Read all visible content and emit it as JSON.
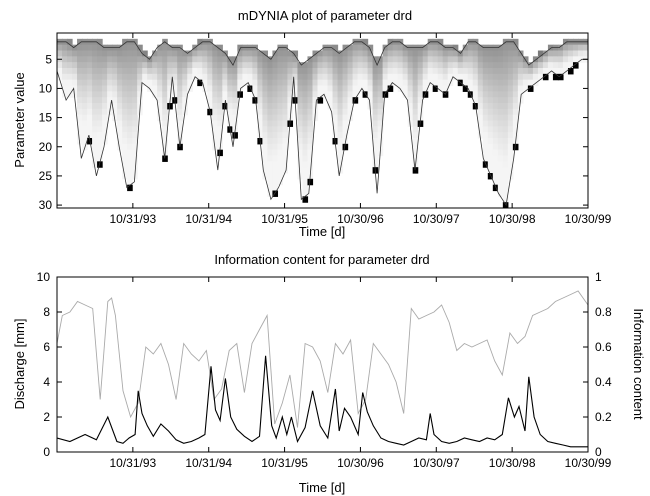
{
  "chart_data": [
    {
      "type": "heatmap",
      "title": "mDYNIA plot of parameter drd",
      "xlabel": "Time [d]",
      "ylabel": "Parameter value",
      "x_ticks": [
        "10/31/93",
        "10/31/94",
        "10/31/95",
        "10/30/96",
        "10/30/97",
        "10/30/98",
        "10/30/99"
      ],
      "x_tick_positions": [
        1993.83,
        1994.83,
        1995.83,
        1996.83,
        1997.83,
        1998.83,
        1999.83
      ],
      "xlim": [
        1992.83,
        1999.83
      ],
      "y_ticks": [
        5,
        10,
        15,
        20,
        25,
        30
      ],
      "ylim": [
        0.5,
        30.5
      ],
      "y_reversed": true,
      "series": [
        {
          "role": "upper",
          "x": [
            1992.83,
            1992.95,
            1993.05,
            1993.15,
            1993.25,
            1993.35,
            1993.45,
            1993.55,
            1993.65,
            1993.75,
            1993.85,
            1993.95,
            1994.05,
            1994.15,
            1994.25,
            1994.35,
            1994.45,
            1994.55,
            1994.65,
            1994.75,
            1994.85,
            1994.95,
            1995.05,
            1995.15,
            1995.25,
            1995.35,
            1995.45,
            1995.55,
            1995.65,
            1995.75,
            1995.85,
            1995.95,
            1996.05,
            1996.15,
            1996.25,
            1996.35,
            1996.45,
            1996.55,
            1996.65,
            1996.75,
            1996.85,
            1996.95,
            1997.05,
            1997.15,
            1997.25,
            1997.35,
            1997.45,
            1997.55,
            1997.65,
            1997.75,
            1997.85,
            1997.95,
            1998.05,
            1998.15,
            1998.25,
            1998.35,
            1998.45,
            1998.55,
            1998.65,
            1998.75,
            1998.85,
            1998.95,
            1999.05,
            1999.15,
            1999.25,
            1999.35,
            1999.45,
            1999.55,
            1999.65,
            1999.75,
            1999.83
          ],
          "y": [
            2,
            2,
            3,
            2,
            2,
            2,
            3,
            3,
            3,
            2,
            2,
            4,
            5,
            3,
            2,
            3,
            3,
            4,
            3,
            2,
            2,
            3,
            4,
            6,
            3,
            3,
            3,
            4,
            5,
            3,
            3,
            4,
            6,
            5,
            4,
            3,
            3,
            4,
            3,
            2,
            2,
            3,
            6,
            3,
            2,
            2,
            3,
            3,
            3,
            2,
            2,
            3,
            3,
            4,
            2,
            2,
            3,
            3,
            3,
            2,
            2,
            4,
            6,
            5,
            4,
            3,
            3,
            2,
            2,
            2,
            2
          ]
        },
        {
          "role": "lower",
          "x": [
            1992.83,
            1992.95,
            1993.05,
            1993.15,
            1993.25,
            1993.35,
            1993.45,
            1993.55,
            1993.65,
            1993.75,
            1993.85,
            1993.95,
            1994.05,
            1994.15,
            1994.25,
            1994.35,
            1994.45,
            1994.55,
            1994.65,
            1994.75,
            1994.85,
            1994.95,
            1995.05,
            1995.15,
            1995.25,
            1995.35,
            1995.45,
            1995.55,
            1995.65,
            1995.75,
            1995.85,
            1995.95,
            1996.05,
            1996.15,
            1996.25,
            1996.35,
            1996.45,
            1996.55,
            1996.65,
            1996.75,
            1996.85,
            1996.95,
            1997.05,
            1997.15,
            1997.25,
            1997.35,
            1997.45,
            1997.55,
            1997.65,
            1997.75,
            1997.85,
            1997.95,
            1998.05,
            1998.15,
            1998.25,
            1998.35,
            1998.45,
            1998.55,
            1998.65,
            1998.75,
            1998.85,
            1998.95,
            1999.05,
            1999.15,
            1999.25,
            1999.35,
            1999.45,
            1999.55,
            1999.65,
            1999.75,
            1999.83
          ],
          "y": [
            7,
            12,
            10,
            22,
            18,
            25,
            20,
            12,
            20,
            27,
            26,
            9,
            10,
            12,
            22,
            8,
            20,
            11,
            8,
            9,
            14,
            24,
            12,
            20,
            10,
            9,
            12,
            24,
            29,
            27,
            24,
            8,
            29,
            28,
            12,
            11,
            14,
            25,
            18,
            12,
            10,
            12,
            28,
            11,
            9,
            10,
            12,
            24,
            12,
            9,
            10,
            11,
            8,
            9,
            10,
            13,
            22,
            25,
            28,
            30,
            22,
            11,
            10,
            9,
            8,
            7,
            8,
            7,
            6,
            5,
            5
          ]
        }
      ]
    },
    {
      "type": "line",
      "title": "Information content for parameter drd",
      "xlabel": "Time [d]",
      "ylabel": "Discharge [mm]",
      "y2label": "Information content",
      "x_ticks": [
        "10/31/93",
        "10/31/94",
        "10/31/95",
        "10/30/96",
        "10/30/97",
        "10/30/98",
        "10/30/99"
      ],
      "x_tick_positions": [
        1993.83,
        1994.83,
        1995.83,
        1996.83,
        1997.83,
        1998.83,
        1999.83
      ],
      "xlim": [
        1992.83,
        1999.83
      ],
      "ylim": [
        0,
        10
      ],
      "y_ticks": [
        0,
        2,
        4,
        6,
        8,
        10
      ],
      "y2lim": [
        0,
        1
      ],
      "y2_ticks": [
        0,
        0.2,
        0.4,
        0.6,
        0.8,
        1
      ],
      "series": [
        {
          "role": "discharge",
          "axis": "left",
          "color": "#000000",
          "x": [
            1992.83,
            1993.0,
            1993.2,
            1993.35,
            1993.5,
            1993.62,
            1993.7,
            1993.78,
            1993.86,
            1993.9,
            1993.95,
            1994.02,
            1994.1,
            1994.2,
            1994.3,
            1994.4,
            1994.5,
            1994.6,
            1994.7,
            1994.78,
            1994.86,
            1994.92,
            1994.98,
            1995.05,
            1995.12,
            1995.2,
            1995.3,
            1995.4,
            1995.5,
            1995.58,
            1995.66,
            1995.72,
            1995.8,
            1995.86,
            1995.92,
            1996.0,
            1996.1,
            1996.2,
            1996.3,
            1996.4,
            1996.5,
            1996.55,
            1996.62,
            1996.7,
            1996.8,
            1996.86,
            1996.92,
            1997.0,
            1997.1,
            1997.2,
            1997.3,
            1997.4,
            1997.5,
            1997.6,
            1997.7,
            1997.75,
            1997.8,
            1997.9,
            1998.0,
            1998.1,
            1998.2,
            1998.3,
            1998.4,
            1998.5,
            1998.6,
            1998.7,
            1998.78,
            1998.86,
            1998.92,
            1999.0,
            1999.05,
            1999.12,
            1999.2,
            1999.3,
            1999.4,
            1999.5,
            1999.6,
            1999.7,
            1999.83
          ],
          "y": [
            0.8,
            0.6,
            1.0,
            0.7,
            2.0,
            0.6,
            0.5,
            0.8,
            1.0,
            3.5,
            2.2,
            1.5,
            0.9,
            1.6,
            1.2,
            0.7,
            0.5,
            0.6,
            0.8,
            1.0,
            4.9,
            2.4,
            1.8,
            4.2,
            2.0,
            1.3,
            0.9,
            0.6,
            0.9,
            5.5,
            1.5,
            0.8,
            2.0,
            1.0,
            2.0,
            0.6,
            1.4,
            3.5,
            1.5,
            0.8,
            3.6,
            1.2,
            2.5,
            2.0,
            1.0,
            3.4,
            2.3,
            1.5,
            0.8,
            0.6,
            0.5,
            0.4,
            0.6,
            0.8,
            0.7,
            2.2,
            1.0,
            0.6,
            0.5,
            0.6,
            0.8,
            0.7,
            0.6,
            0.8,
            0.7,
            1.0,
            3.1,
            2.0,
            2.6,
            1.2,
            4.3,
            2.0,
            1.0,
            0.6,
            0.5,
            0.4,
            0.3,
            0.3,
            0.3
          ]
        },
        {
          "role": "information",
          "axis": "right",
          "color": "#aaaaaa",
          "x": [
            1992.83,
            1992.9,
            1993.0,
            1993.1,
            1993.2,
            1993.3,
            1993.4,
            1993.5,
            1993.55,
            1993.6,
            1993.7,
            1993.8,
            1993.9,
            1994.0,
            1994.1,
            1994.2,
            1994.3,
            1994.4,
            1994.5,
            1994.6,
            1994.7,
            1994.8,
            1994.9,
            1995.0,
            1995.1,
            1995.2,
            1995.3,
            1995.4,
            1995.5,
            1995.6,
            1995.7,
            1995.8,
            1995.9,
            1996.0,
            1996.1,
            1996.2,
            1996.3,
            1996.4,
            1996.5,
            1996.6,
            1996.7,
            1996.8,
            1996.9,
            1997.0,
            1997.1,
            1997.2,
            1997.3,
            1997.4,
            1997.5,
            1997.6,
            1997.7,
            1997.8,
            1997.9,
            1998.0,
            1998.1,
            1998.2,
            1998.3,
            1998.4,
            1998.5,
            1998.6,
            1998.7,
            1998.8,
            1998.9,
            1999.0,
            1999.1,
            1999.2,
            1999.3,
            1999.4,
            1999.5,
            1999.6,
            1999.7,
            1999.83
          ],
          "y": [
            0.62,
            0.78,
            0.8,
            0.86,
            0.84,
            0.82,
            0.3,
            0.86,
            0.88,
            0.78,
            0.35,
            0.2,
            0.28,
            0.6,
            0.56,
            0.62,
            0.5,
            0.3,
            0.62,
            0.56,
            0.52,
            0.58,
            0.3,
            0.36,
            0.58,
            0.62,
            0.34,
            0.62,
            0.7,
            0.78,
            0.16,
            0.28,
            0.44,
            0.14,
            0.62,
            0.6,
            0.52,
            0.34,
            0.62,
            0.56,
            0.64,
            0.22,
            0.3,
            0.62,
            0.56,
            0.5,
            0.4,
            0.22,
            0.82,
            0.76,
            0.78,
            0.8,
            0.84,
            0.74,
            0.58,
            0.62,
            0.6,
            0.62,
            0.64,
            0.52,
            0.44,
            0.68,
            0.62,
            0.66,
            0.78,
            0.8,
            0.82,
            0.86,
            0.88,
            0.9,
            0.92,
            0.84
          ]
        }
      ]
    }
  ]
}
